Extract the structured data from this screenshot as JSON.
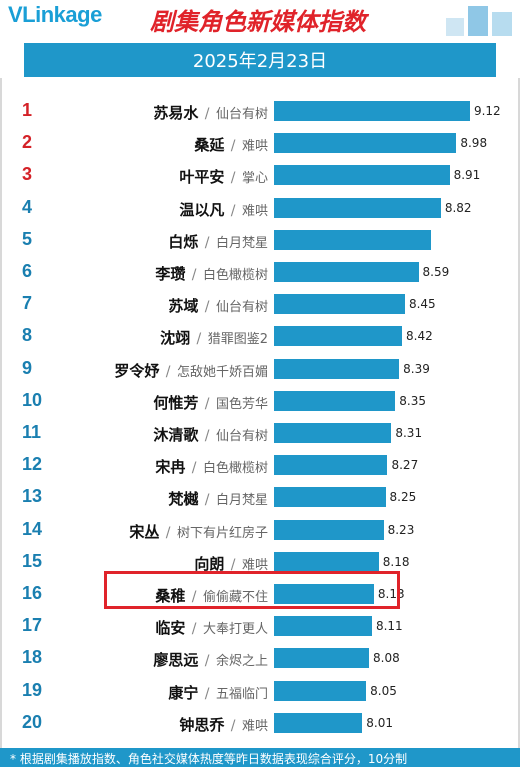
{
  "header": {
    "logo": "VLinkage",
    "title": "剧集角色新媒体指数",
    "date": "2025年2月23日"
  },
  "colors": {
    "bar": "#1f97c9",
    "title_red": "#e0232a",
    "rank_top": "#d42127",
    "rank_other": "#1a7fb0"
  },
  "highlight_rank": 16,
  "footer": "* 根据剧集播放指数、角色社交媒体热度等昨日数据表现综合评分，10分制",
  "chart_data": {
    "type": "bar",
    "orientation": "horizontal",
    "title": "剧集角色新媒体指数",
    "subtitle": "2025年2月23日",
    "xlim": [
      0,
      10
    ],
    "rows": [
      {
        "rank": "1",
        "name": "苏易水",
        "show": "仙台有树",
        "value": 9.12,
        "value_label": "9.12"
      },
      {
        "rank": "2",
        "name": "桑延",
        "show": "难哄",
        "value": 8.98,
        "value_label": "8.98"
      },
      {
        "rank": "3",
        "name": "叶平安",
        "show": "掌心",
        "value": 8.91,
        "value_label": "8.91"
      },
      {
        "rank": "4",
        "name": "温以凡",
        "show": "难哄",
        "value": 8.82,
        "value_label": "8.82"
      },
      {
        "rank": "5",
        "name": "白烁",
        "show": "白月梵星",
        "value": 8.72,
        "value_label": ""
      },
      {
        "rank": "6",
        "name": "李瓒",
        "show": "白色橄榄树",
        "value": 8.59,
        "value_label": "8.59"
      },
      {
        "rank": "7",
        "name": "苏域",
        "show": "仙台有树",
        "value": 8.45,
        "value_label": "8.45"
      },
      {
        "rank": "8",
        "name": "沈翊",
        "show": "猎罪图鉴2",
        "value": 8.42,
        "value_label": "8.42"
      },
      {
        "rank": "9",
        "name": "罗令妤",
        "show": "怎敌她千娇百媚",
        "value": 8.39,
        "value_label": "8.39"
      },
      {
        "rank": "10",
        "name": "何惟芳",
        "show": "国色芳华",
        "value": 8.35,
        "value_label": "8.35"
      },
      {
        "rank": "11",
        "name": "沐清歌",
        "show": "仙台有树",
        "value": 8.31,
        "value_label": "8.31"
      },
      {
        "rank": "12",
        "name": "宋冉",
        "show": "白色橄榄树",
        "value": 8.27,
        "value_label": "8.27"
      },
      {
        "rank": "13",
        "name": "梵樾",
        "show": "白月梵星",
        "value": 8.25,
        "value_label": "8.25"
      },
      {
        "rank": "14",
        "name": "宋丛",
        "show": "树下有片红房子",
        "value": 8.23,
        "value_label": "8.23"
      },
      {
        "rank": "15",
        "name": "向朗",
        "show": "难哄",
        "value": 8.18,
        "value_label": "8.18"
      },
      {
        "rank": "16",
        "name": "桑稚",
        "show": "偷偷藏不住",
        "value": 8.13,
        "value_label": "8.13"
      },
      {
        "rank": "17",
        "name": "临安",
        "show": "大奉打更人",
        "value": 8.11,
        "value_label": "8.11"
      },
      {
        "rank": "18",
        "name": "廖思远",
        "show": "余烬之上",
        "value": 8.08,
        "value_label": "8.08"
      },
      {
        "rank": "19",
        "name": "康宁",
        "show": "五福临门",
        "value": 8.05,
        "value_label": "8.05"
      },
      {
        "rank": "20",
        "name": "钟思乔",
        "show": "难哄",
        "value": 8.01,
        "value_label": "8.01"
      }
    ]
  }
}
